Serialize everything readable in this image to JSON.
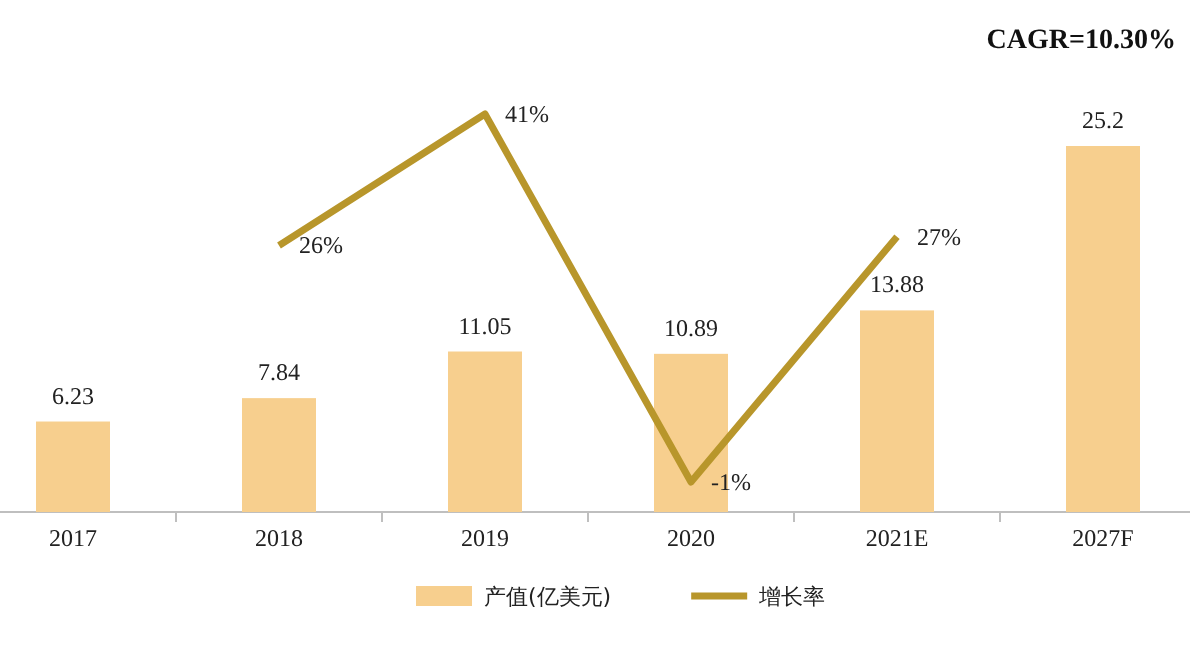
{
  "chart_data": {
    "type": "bar",
    "categories": [
      "2017",
      "2018",
      "2019",
      "2020",
      "2021E",
      "2027F"
    ],
    "series": [
      {
        "name": "产值(亿美元)",
        "color": "#f7cf8e",
        "values": [
          6.23,
          7.84,
          11.05,
          10.89,
          13.88,
          25.2
        ]
      },
      {
        "name": "增长率",
        "type": "line",
        "axis": "y2",
        "color": "#b8962b",
        "values": [
          null,
          26,
          41,
          -1,
          27,
          null
        ],
        "value_labels": [
          null,
          "26%",
          "41%",
          "-1%",
          "27%",
          null
        ]
      }
    ],
    "tick_labels": "x",
    "data_labels": true,
    "legend": "bottom",
    "marker": "none",
    "line_style": "solid",
    "annotations": [
      "CAGR=10.30%"
    ]
  }
}
